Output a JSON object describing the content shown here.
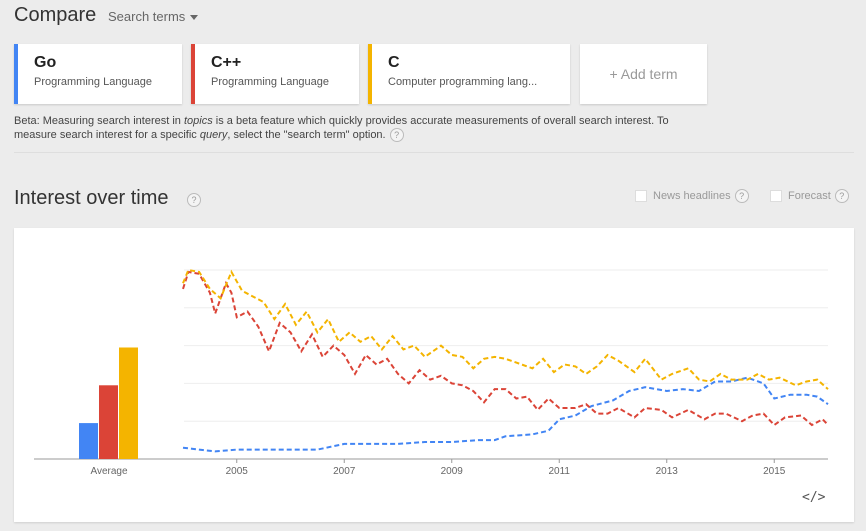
{
  "header": {
    "title": "Compare",
    "search_terms": "Search terms"
  },
  "terms": [
    {
      "label": "Go",
      "category": "Programming Language",
      "color": "#4285f4"
    },
    {
      "label": "C++",
      "category": "Programming Language",
      "color": "#db4437"
    },
    {
      "label": "C",
      "category": "Computer programming lang...",
      "color": "#f4b400"
    }
  ],
  "add_term": "+ Add term",
  "beta": {
    "prefix": "Beta: Measuring search interest in ",
    "topics": "topics",
    "middle": " is a beta feature which quickly provides accurate measurements of overall search interest. To measure search interest for a specific ",
    "query": "query",
    "suffix": ", select the \"search term\" option."
  },
  "help_icon": "?",
  "section": {
    "title": "Interest over time",
    "news_headlines": "News headlines",
    "forecast": "Forecast",
    "embed_icon": "</>"
  },
  "chart_data": [
    {
      "type": "bar",
      "categories": [
        "Average"
      ],
      "series": [
        {
          "name": "Go",
          "values": [
            19
          ],
          "color": "#4285f4"
        },
        {
          "name": "C++",
          "values": [
            39
          ],
          "color": "#db4437"
        },
        {
          "name": "C",
          "values": [
            59
          ],
          "color": "#f4b400"
        }
      ],
      "ylim": [
        0,
        100
      ]
    },
    {
      "type": "line",
      "ylim": [
        0,
        100
      ],
      "xlim": [
        2004.0,
        2016.0
      ],
      "x_ticks": [
        "2005",
        "2007",
        "2009",
        "2011",
        "2013",
        "2015"
      ],
      "grid": true,
      "line_style": "dashed",
      "series": [
        {
          "name": "Go",
          "color": "#4285f4",
          "points": [
            [
              2004.0,
              6
            ],
            [
              2004.3,
              5
            ],
            [
              2004.6,
              4
            ],
            [
              2005.0,
              5
            ],
            [
              2005.5,
              5
            ],
            [
              2006.0,
              5
            ],
            [
              2006.5,
              5
            ],
            [
              2007.0,
              8
            ],
            [
              2007.5,
              8
            ],
            [
              2008.0,
              8
            ],
            [
              2008.5,
              9
            ],
            [
              2009.0,
              9
            ],
            [
              2009.5,
              10
            ],
            [
              2009.8,
              10
            ],
            [
              2010.0,
              12
            ],
            [
              2010.5,
              13
            ],
            [
              2010.8,
              15
            ],
            [
              2011.0,
              21
            ],
            [
              2011.3,
              23
            ],
            [
              2011.6,
              28
            ],
            [
              2012.0,
              31
            ],
            [
              2012.3,
              36
            ],
            [
              2012.6,
              38
            ],
            [
              2013.0,
              36
            ],
            [
              2013.3,
              37
            ],
            [
              2013.6,
              36
            ],
            [
              2013.9,
              41
            ],
            [
              2014.2,
              41
            ],
            [
              2014.5,
              43
            ],
            [
              2014.8,
              40
            ],
            [
              2015.0,
              32
            ],
            [
              2015.3,
              34
            ],
            [
              2015.6,
              34
            ],
            [
              2015.8,
              33
            ],
            [
              2016.0,
              29
            ]
          ]
        },
        {
          "name": "C++",
          "color": "#db4437",
          "points": [
            [
              2004.0,
              90
            ],
            [
              2004.1,
              99
            ],
            [
              2004.3,
              98
            ],
            [
              2004.5,
              88
            ],
            [
              2004.6,
              77
            ],
            [
              2004.8,
              93
            ],
            [
              2004.9,
              88
            ],
            [
              2005.0,
              75
            ],
            [
              2005.2,
              78
            ],
            [
              2005.4,
              70
            ],
            [
              2005.6,
              57
            ],
            [
              2005.8,
              72
            ],
            [
              2006.0,
              67
            ],
            [
              2006.2,
              57
            ],
            [
              2006.4,
              66
            ],
            [
              2006.6,
              54
            ],
            [
              2006.8,
              60
            ],
            [
              2007.0,
              55
            ],
            [
              2007.2,
              45
            ],
            [
              2007.4,
              55
            ],
            [
              2007.6,
              50
            ],
            [
              2007.8,
              53
            ],
            [
              2008.0,
              45
            ],
            [
              2008.2,
              40
            ],
            [
              2008.4,
              47
            ],
            [
              2008.6,
              42
            ],
            [
              2008.8,
              44
            ],
            [
              2009.0,
              40
            ],
            [
              2009.2,
              39
            ],
            [
              2009.4,
              36
            ],
            [
              2009.6,
              30
            ],
            [
              2009.8,
              37
            ],
            [
              2010.0,
              37
            ],
            [
              2010.2,
              32
            ],
            [
              2010.4,
              33
            ],
            [
              2010.6,
              26
            ],
            [
              2010.8,
              32
            ],
            [
              2011.0,
              27
            ],
            [
              2011.3,
              27
            ],
            [
              2011.5,
              29
            ],
            [
              2011.7,
              24
            ],
            [
              2011.9,
              24
            ],
            [
              2012.1,
              27
            ],
            [
              2012.4,
              22
            ],
            [
              2012.6,
              27
            ],
            [
              2012.9,
              26
            ],
            [
              2013.1,
              22
            ],
            [
              2013.4,
              26
            ],
            [
              2013.7,
              21
            ],
            [
              2013.9,
              24
            ],
            [
              2014.1,
              24
            ],
            [
              2014.4,
              20
            ],
            [
              2014.6,
              23
            ],
            [
              2014.8,
              24
            ],
            [
              2015.0,
              18
            ],
            [
              2015.2,
              22
            ],
            [
              2015.5,
              23
            ],
            [
              2015.7,
              18
            ],
            [
              2015.9,
              21
            ],
            [
              2016.0,
              18
            ]
          ]
        },
        {
          "name": "C",
          "color": "#f4b400",
          "points": [
            [
              2004.0,
              93
            ],
            [
              2004.1,
              100
            ],
            [
              2004.3,
              99
            ],
            [
              2004.5,
              90
            ],
            [
              2004.7,
              85
            ],
            [
              2004.9,
              99
            ],
            [
              2005.1,
              89
            ],
            [
              2005.3,
              86
            ],
            [
              2005.5,
              83
            ],
            [
              2005.7,
              74
            ],
            [
              2005.9,
              82
            ],
            [
              2006.1,
              71
            ],
            [
              2006.3,
              78
            ],
            [
              2006.5,
              67
            ],
            [
              2006.7,
              74
            ],
            [
              2006.9,
              62
            ],
            [
              2007.1,
              67
            ],
            [
              2007.3,
              62
            ],
            [
              2007.5,
              65
            ],
            [
              2007.7,
              58
            ],
            [
              2007.9,
              65
            ],
            [
              2008.1,
              58
            ],
            [
              2008.3,
              60
            ],
            [
              2008.5,
              54
            ],
            [
              2008.8,
              60
            ],
            [
              2009.0,
              55
            ],
            [
              2009.2,
              54
            ],
            [
              2009.4,
              48
            ],
            [
              2009.6,
              53
            ],
            [
              2009.8,
              54
            ],
            [
              2010.0,
              53
            ],
            [
              2010.2,
              51
            ],
            [
              2010.5,
              48
            ],
            [
              2010.7,
              53
            ],
            [
              2010.9,
              46
            ],
            [
              2011.1,
              50
            ],
            [
              2011.3,
              49
            ],
            [
              2011.5,
              45
            ],
            [
              2011.7,
              49
            ],
            [
              2011.9,
              55
            ],
            [
              2012.1,
              52
            ],
            [
              2012.4,
              46
            ],
            [
              2012.6,
              53
            ],
            [
              2012.9,
              42
            ],
            [
              2013.1,
              45
            ],
            [
              2013.4,
              48
            ],
            [
              2013.6,
              42
            ],
            [
              2013.8,
              41
            ],
            [
              2014.0,
              45
            ],
            [
              2014.2,
              42
            ],
            [
              2014.5,
              42
            ],
            [
              2014.7,
              45
            ],
            [
              2014.9,
              42
            ],
            [
              2015.1,
              43
            ],
            [
              2015.4,
              39
            ],
            [
              2015.6,
              41
            ],
            [
              2015.8,
              42
            ],
            [
              2016.0,
              37
            ]
          ]
        }
      ]
    }
  ]
}
